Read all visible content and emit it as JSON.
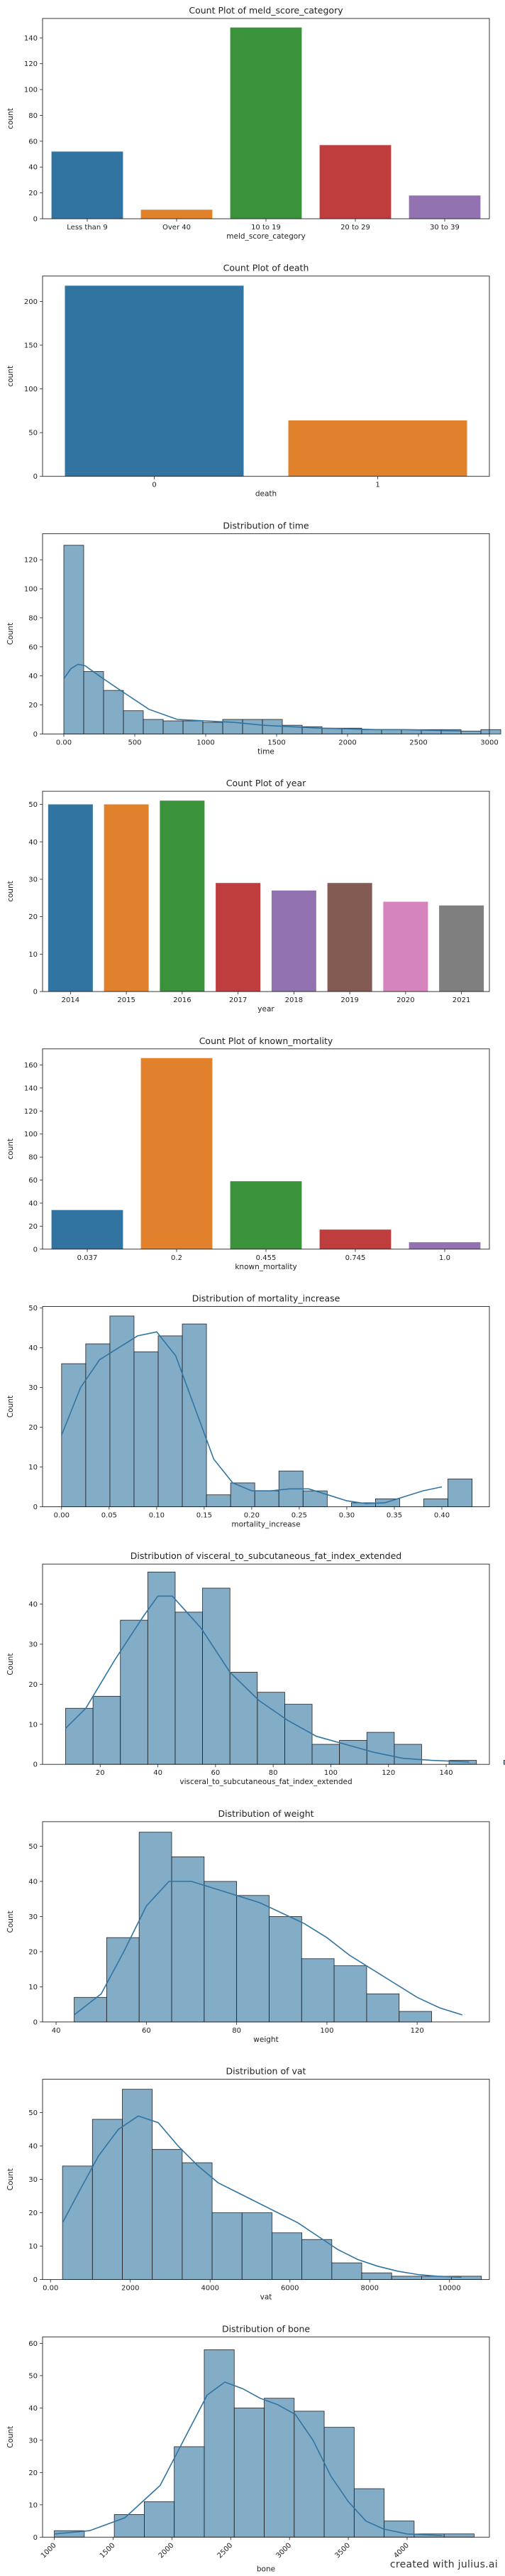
{
  "watermark": "created with julius.ai",
  "chart_data": [
    {
      "type": "bar",
      "title": "Count Plot of meld_score_category",
      "xlabel": "meld_score_category",
      "ylabel": "count",
      "categories": [
        "Less than 9",
        "Over 40",
        "10 to 19",
        "20 to 29",
        "30 to 39"
      ],
      "values": [
        52,
        7,
        148,
        57,
        18
      ],
      "colors": [
        "#3274a1",
        "#e1812c",
        "#3a923a",
        "#c03d3e",
        "#9372b2"
      ],
      "ylim": [
        0,
        155
      ],
      "yticks": [
        0,
        20,
        40,
        60,
        80,
        100,
        120,
        140
      ]
    },
    {
      "type": "bar",
      "title": "Count Plot of death",
      "xlabel": "death",
      "ylabel": "count",
      "categories": [
        "0",
        "1"
      ],
      "values": [
        218,
        64
      ],
      "colors": [
        "#3274a1",
        "#e1812c"
      ],
      "ylim": [
        0,
        229
      ],
      "yticks": [
        0,
        50,
        100,
        150,
        200
      ]
    },
    {
      "type": "histogram",
      "title": "Distribution of time",
      "xlabel": "time",
      "ylabel": "Count",
      "bin_start": 0,
      "bin_width": 140,
      "values": [
        130,
        43,
        30,
        16,
        10,
        9,
        9,
        8,
        10,
        10,
        10,
        6,
        5,
        4,
        4,
        3,
        3,
        3,
        3,
        3,
        2,
        3
      ],
      "xlim": [
        -150,
        3000
      ],
      "ylim": [
        0,
        138
      ],
      "xticks": [
        0,
        500,
        1000,
        1500,
        2000,
        2500,
        3000
      ],
      "yticks": [
        0,
        20,
        40,
        60,
        80,
        100,
        120
      ],
      "kde": [
        [
          0,
          38
        ],
        [
          50,
          45
        ],
        [
          100,
          48
        ],
        [
          150,
          47
        ],
        [
          250,
          40
        ],
        [
          400,
          30
        ],
        [
          600,
          17
        ],
        [
          800,
          10
        ],
        [
          1000,
          9
        ],
        [
          1200,
          8
        ],
        [
          1400,
          6
        ],
        [
          1600,
          5
        ],
        [
          1800,
          4
        ],
        [
          2000,
          3.5
        ],
        [
          2200,
          3
        ],
        [
          2400,
          3
        ],
        [
          2600,
          2.5
        ],
        [
          2800,
          2
        ]
      ]
    },
    {
      "type": "bar",
      "title": "Count Plot of year",
      "xlabel": "year",
      "ylabel": "count",
      "categories": [
        "2014",
        "2015",
        "2016",
        "2017",
        "2018",
        "2019",
        "2020",
        "2021"
      ],
      "values": [
        50,
        50,
        51,
        29,
        27,
        29,
        24,
        23
      ],
      "colors": [
        "#3274a1",
        "#e1812c",
        "#3a923a",
        "#c03d3e",
        "#9372b2",
        "#845b53",
        "#d684bd",
        "#7f7f7f"
      ],
      "ylim": [
        0,
        53.5
      ],
      "yticks": [
        0,
        10,
        20,
        30,
        40,
        50
      ]
    },
    {
      "type": "bar",
      "title": "Count Plot of known_mortality",
      "xlabel": "known_mortality",
      "ylabel": "count",
      "categories": [
        "0.037",
        "0.2",
        "0.455",
        "0.745",
        "1.0"
      ],
      "values": [
        34,
        166,
        59,
        17,
        6
      ],
      "colors": [
        "#3274a1",
        "#e1812c",
        "#3a923a",
        "#c03d3e",
        "#9372b2"
      ],
      "ylim": [
        0,
        174
      ],
      "yticks": [
        0,
        20,
        40,
        60,
        80,
        100,
        120,
        140,
        160
      ]
    },
    {
      "type": "histogram",
      "title": "Distribution of mortality_increase",
      "xlabel": "mortality_increase",
      "ylabel": "Count",
      "bin_start": 0,
      "bin_width": 0.0254,
      "values": [
        36,
        41,
        48,
        39,
        43,
        46,
        3,
        6,
        4,
        9,
        4,
        0,
        1,
        2,
        0,
        2,
        7
      ],
      "xlim": [
        -0.02,
        0.45
      ],
      "ylim": [
        0,
        50.4
      ],
      "xticks": [
        0.0,
        0.05,
        0.1,
        0.15,
        0.2,
        0.25,
        0.3,
        0.35,
        0.4
      ],
      "yticks": [
        0,
        10,
        20,
        30,
        40,
        50
      ],
      "kde": [
        [
          0.0,
          18
        ],
        [
          0.02,
          30
        ],
        [
          0.04,
          37
        ],
        [
          0.06,
          40
        ],
        [
          0.08,
          43
        ],
        [
          0.1,
          44
        ],
        [
          0.12,
          38
        ],
        [
          0.14,
          25
        ],
        [
          0.16,
          12
        ],
        [
          0.18,
          6
        ],
        [
          0.2,
          4
        ],
        [
          0.22,
          4
        ],
        [
          0.24,
          4.5
        ],
        [
          0.26,
          4.5
        ],
        [
          0.28,
          3
        ],
        [
          0.3,
          1.5
        ],
        [
          0.32,
          0.8
        ],
        [
          0.34,
          1
        ],
        [
          0.36,
          2.5
        ],
        [
          0.38,
          4
        ],
        [
          0.4,
          5
        ]
      ]
    },
    {
      "type": "histogram",
      "title": "Distribution of visceral_to_subcutaneous_fat_index_extended",
      "xlabel": "visceral_to_subcutaneous_fat_index_extended",
      "ylabel": "Count",
      "bin_start": 8,
      "bin_width": 9.5,
      "values": [
        14,
        17,
        36,
        48,
        38,
        44,
        23,
        18,
        15,
        5,
        6,
        8,
        5,
        0,
        1,
        0,
        1
      ],
      "xlim": [
        0,
        155
      ],
      "ylim": [
        0,
        50
      ],
      "xticks": [
        20,
        40,
        60,
        80,
        100,
        120,
        140
      ],
      "yticks": [
        0,
        10,
        20,
        30,
        40
      ],
      "kde": [
        [
          8,
          9
        ],
        [
          15,
          14
        ],
        [
          25,
          26
        ],
        [
          35,
          37
        ],
        [
          40,
          42
        ],
        [
          45,
          42
        ],
        [
          55,
          34
        ],
        [
          65,
          23
        ],
        [
          75,
          16
        ],
        [
          85,
          11
        ],
        [
          95,
          7
        ],
        [
          105,
          5
        ],
        [
          115,
          3
        ],
        [
          125,
          1.5
        ],
        [
          135,
          1
        ],
        [
          148,
          0.6
        ]
      ]
    },
    {
      "type": "histogram",
      "title": "Distribution of weight",
      "xlabel": "weight",
      "ylabel": "Count",
      "bin_start": 44,
      "bin_width": 7.2,
      "values": [
        7,
        24,
        54,
        47,
        40,
        36,
        30,
        18,
        16,
        8,
        3
      ],
      "xlim": [
        37,
        136
      ],
      "ylim": [
        0,
        57
      ],
      "xticks": [
        40,
        60,
        80,
        100,
        120
      ],
      "yticks": [
        0,
        10,
        20,
        30,
        40,
        50
      ],
      "kde": [
        [
          44,
          2
        ],
        [
          50,
          8
        ],
        [
          55,
          20
        ],
        [
          60,
          33
        ],
        [
          65,
          40
        ],
        [
          70,
          40
        ],
        [
          75,
          38
        ],
        [
          80,
          36
        ],
        [
          85,
          34
        ],
        [
          90,
          31
        ],
        [
          95,
          28
        ],
        [
          100,
          24
        ],
        [
          105,
          19
        ],
        [
          110,
          15
        ],
        [
          115,
          11
        ],
        [
          120,
          7
        ],
        [
          125,
          4
        ],
        [
          130,
          2
        ]
      ]
    },
    {
      "type": "histogram",
      "title": "Distribution of vat",
      "xlabel": "vat",
      "ylabel": "Count",
      "bin_start": 300,
      "bin_width": 750,
      "values": [
        34,
        48,
        57,
        39,
        35,
        20,
        20,
        14,
        12,
        5,
        2,
        1,
        1,
        1
      ],
      "xlim": [
        -200,
        11000
      ],
      "ylim": [
        0,
        60
      ],
      "xticks": [
        0,
        2000,
        4000,
        6000,
        8000,
        10000
      ],
      "yticks": [
        0,
        10,
        20,
        30,
        40,
        50
      ],
      "kde": [
        [
          300,
          17
        ],
        [
          700,
          26
        ],
        [
          1200,
          37
        ],
        [
          1700,
          45
        ],
        [
          2200,
          49
        ],
        [
          2700,
          47
        ],
        [
          3200,
          40
        ],
        [
          3700,
          34
        ],
        [
          4200,
          29
        ],
        [
          4700,
          26
        ],
        [
          5200,
          23
        ],
        [
          5700,
          20
        ],
        [
          6200,
          17
        ],
        [
          6700,
          13
        ],
        [
          7200,
          9
        ],
        [
          7700,
          6
        ],
        [
          8200,
          4
        ],
        [
          8700,
          2.5
        ],
        [
          9200,
          1.5
        ],
        [
          9700,
          1
        ],
        [
          10300,
          0.7
        ]
      ]
    },
    {
      "type": "histogram",
      "title": "Distribution of bone",
      "xlabel": "bone",
      "ylabel": "Count",
      "bin_start": 1000,
      "bin_width": 255,
      "values": [
        2,
        0,
        7,
        11,
        28,
        58,
        40,
        43,
        39,
        34,
        15,
        5,
        1,
        1
      ],
      "xlim": [
        900,
        4700
      ],
      "ylim": [
        0,
        62
      ],
      "xticks": [
        1000,
        1500,
        2000,
        2500,
        3000,
        3500,
        4000
      ],
      "yticks": [
        0,
        10,
        20,
        30,
        40,
        50,
        60
      ],
      "kde": [
        [
          1000,
          1
        ],
        [
          1300,
          2
        ],
        [
          1600,
          6
        ],
        [
          1900,
          16
        ],
        [
          2100,
          30
        ],
        [
          2300,
          44
        ],
        [
          2450,
          48
        ],
        [
          2600,
          46
        ],
        [
          2750,
          43
        ],
        [
          2900,
          41
        ],
        [
          3050,
          38
        ],
        [
          3200,
          30
        ],
        [
          3350,
          19
        ],
        [
          3500,
          11
        ],
        [
          3650,
          5
        ],
        [
          3800,
          2.5
        ],
        [
          4000,
          1
        ],
        [
          4300,
          0.5
        ]
      ]
    }
  ]
}
